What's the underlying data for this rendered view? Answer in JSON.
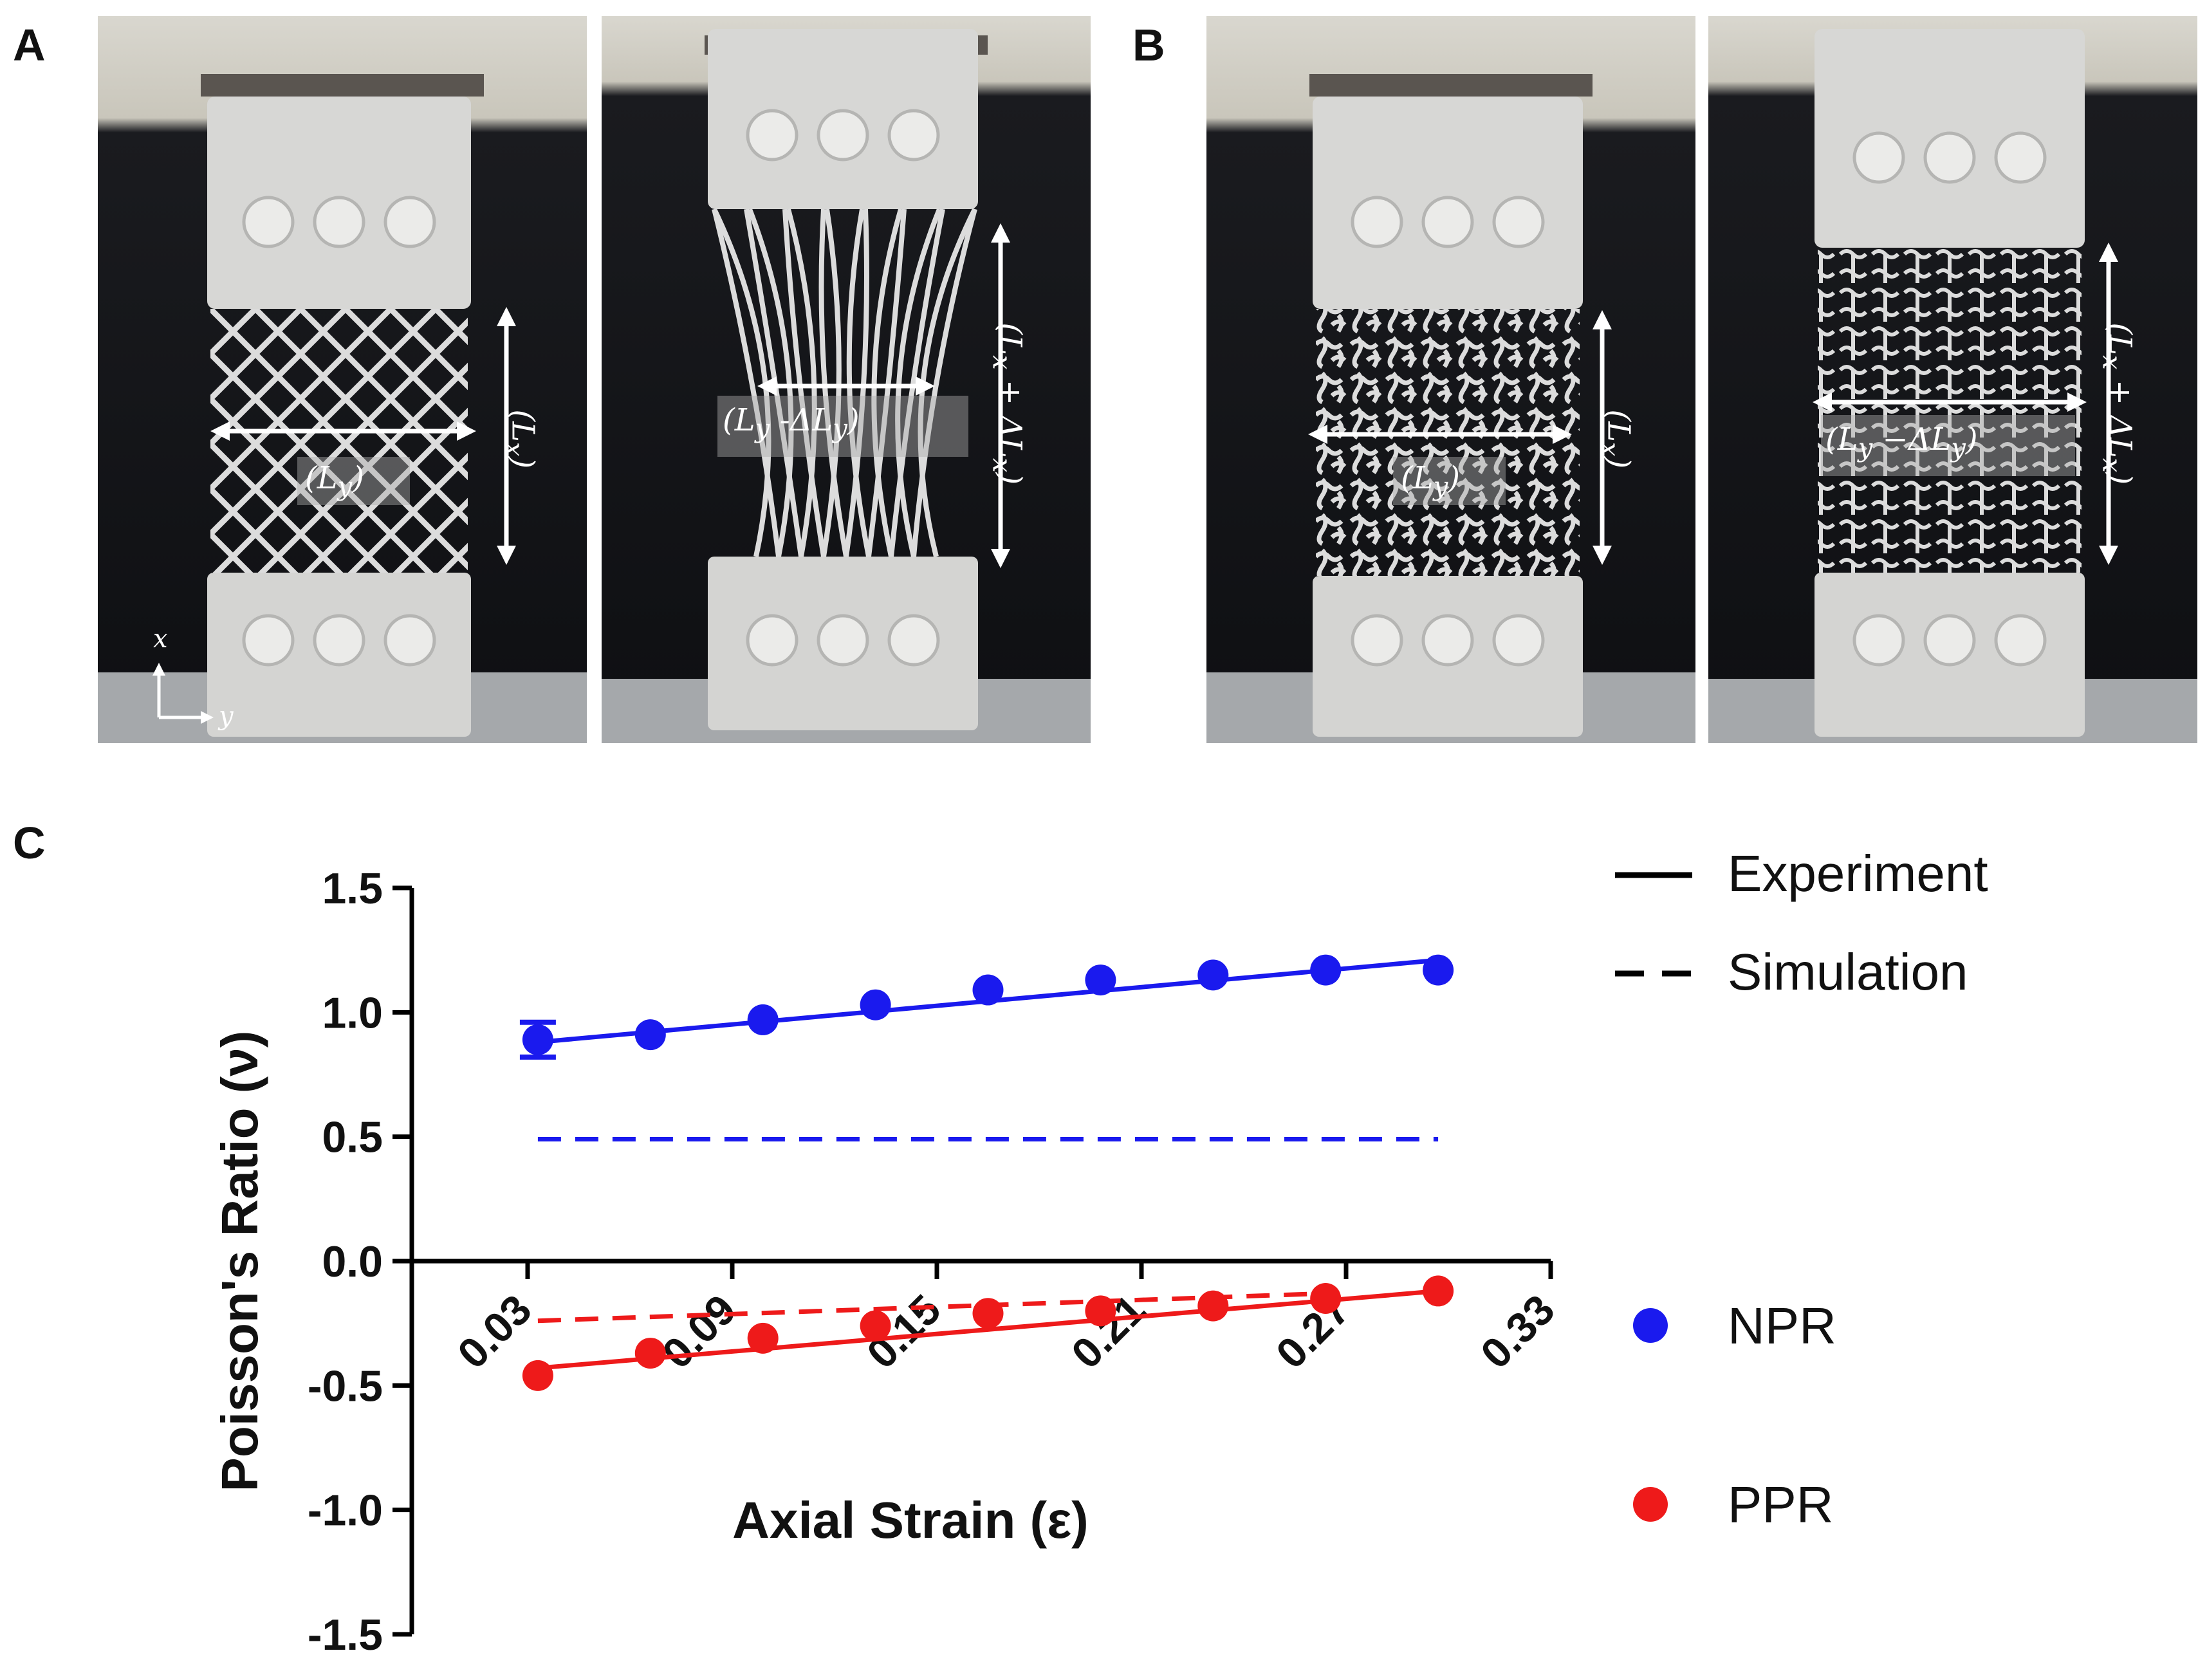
{
  "panels": {
    "a": {
      "label": "A"
    },
    "b": {
      "label": "B"
    },
    "c": {
      "label": "C"
    }
  },
  "photos": {
    "axis_x": "x",
    "axis_y": "y",
    "a_rest": {
      "width_label": "(L",
      "width_sub": "y",
      "width_close": ")",
      "length_label": "(L",
      "length_sub": "x",
      "length_close": ")"
    },
    "a_stretched": {
      "width_label": "(L",
      "width_sub": "y",
      "width_mid": " -ΔL",
      "width_sub2": "y",
      "width_close": ")",
      "length_label": "(L",
      "length_sub": "x",
      "length_mid": " + ΔL",
      "length_sub2": "x",
      "length_close": ")"
    },
    "b_rest": {
      "width_label": "(L",
      "width_sub": "y",
      "width_close": ")",
      "length_label": "(L",
      "length_sub": "x",
      "length_close": ")"
    },
    "b_stretched": {
      "width_label": "(L",
      "width_sub": "y",
      "width_mid": " −ΔL",
      "width_sub2": "y",
      "width_close": ")",
      "length_label": "(L",
      "length_sub": "x",
      "length_mid": " + ΔL",
      "length_sub2": "x",
      "length_close": ")"
    }
  },
  "chart_data": {
    "type": "line",
    "xlabel": "Axial Strain (ε)",
    "ylabel": "Poisson's Ratio (ν)",
    "xlim": [
      0.03,
      0.33
    ],
    "ylim": [
      -1.5,
      1.5
    ],
    "x_ticks": [
      0.03,
      0.09,
      0.15,
      0.21,
      0.27,
      0.33
    ],
    "x_tick_labels": [
      "0.03",
      "0.09",
      "0.15",
      "0.21",
      "0.27",
      "0.33"
    ],
    "y_ticks": [
      1.5,
      1.0,
      0.5,
      0.0,
      -0.5,
      -1.0,
      -1.5
    ],
    "y_tick_labels": [
      "1.5",
      "1.0",
      "0.5",
      "0.0",
      "-0.5",
      "-1.0",
      "-1.5"
    ],
    "series": [
      {
        "name": "NPR",
        "color": "#1a1aee",
        "kind": "experiment",
        "x": [
          0.033,
          0.066,
          0.099,
          0.132,
          0.165,
          0.198,
          0.231,
          0.264,
          0.297
        ],
        "y": [
          0.89,
          0.91,
          0.97,
          1.03,
          1.09,
          1.13,
          1.15,
          1.17,
          1.17
        ],
        "error": [
          0.07,
          0,
          0,
          0,
          0,
          0,
          0,
          0,
          0
        ],
        "fit": [
          [
            0.033,
            0.88
          ],
          [
            0.297,
            1.21
          ]
        ]
      },
      {
        "name": "PPR",
        "color": "#ee1a1a",
        "kind": "experiment",
        "x": [
          0.033,
          0.066,
          0.099,
          0.132,
          0.165,
          0.198,
          0.231,
          0.264,
          0.297
        ],
        "y": [
          -0.46,
          -0.37,
          -0.31,
          -0.26,
          -0.21,
          -0.2,
          -0.18,
          -0.15,
          -0.12
        ],
        "error": [
          0,
          0,
          0,
          0,
          0,
          0,
          0,
          0,
          0
        ],
        "fit": [
          [
            0.033,
            -0.43
          ],
          [
            0.297,
            -0.12
          ]
        ]
      },
      {
        "kind": "simulation",
        "color": "#1a1aee",
        "line": [
          [
            0.033,
            0.49
          ],
          [
            0.297,
            0.49
          ]
        ]
      },
      {
        "kind": "simulation",
        "color": "#ee1a1a",
        "line": [
          [
            0.033,
            -0.24
          ],
          [
            0.264,
            -0.13
          ]
        ]
      }
    ],
    "legend": {
      "experiment": "Experiment",
      "simulation": "Simulation",
      "npr": "NPR",
      "ppr": "PPR"
    }
  }
}
